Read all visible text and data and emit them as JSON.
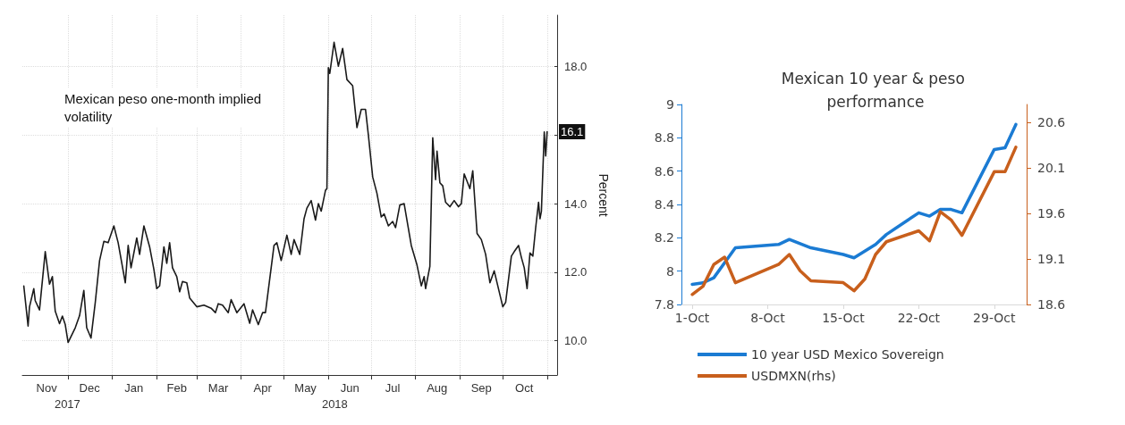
{
  "chart_data": [
    {
      "type": "line",
      "title": "Mexican peso one-month implied volatility",
      "ylabel": "Percent",
      "x": [
        "2017-10-31",
        "2017-11-03",
        "2017-11-04",
        "2017-11-07",
        "2017-11-08",
        "2017-11-11",
        "2017-11-15",
        "2017-11-18",
        "2017-11-20",
        "2017-11-22",
        "2017-11-25",
        "2017-11-27",
        "2017-11-29",
        "2017-12-01",
        "2017-12-06",
        "2017-12-09",
        "2017-12-12",
        "2017-12-14",
        "2017-12-17",
        "2017-12-20",
        "2017-12-23",
        "2017-12-26",
        "2017-12-29",
        "2018-01-02",
        "2018-01-05",
        "2018-01-10",
        "2018-01-12",
        "2018-01-14",
        "2018-01-18",
        "2018-01-20",
        "2018-01-23",
        "2018-01-27",
        "2018-01-30",
        "2018-02-01",
        "2018-02-03",
        "2018-02-06",
        "2018-02-08",
        "2018-02-10",
        "2018-02-12",
        "2018-02-15",
        "2018-02-17",
        "2018-02-19",
        "2018-02-22",
        "2018-02-24",
        "2018-03-01",
        "2018-03-06",
        "2018-03-11",
        "2018-03-14",
        "2018-03-16",
        "2018-03-19",
        "2018-03-23",
        "2018-03-25",
        "2018-03-29",
        "2018-04-03",
        "2018-04-07",
        "2018-04-09",
        "2018-04-13",
        "2018-04-16",
        "2018-04-18",
        "2018-04-24",
        "2018-04-26",
        "2018-04-29",
        "2018-05-03",
        "2018-05-06",
        "2018-05-08",
        "2018-05-12",
        "2018-05-15",
        "2018-05-17",
        "2018-05-20",
        "2018-05-23",
        "2018-05-25",
        "2018-05-27",
        "2018-05-30",
        "2018-05-31",
        "2018-06-01",
        "2018-06-02",
        "2018-06-05",
        "2018-06-08",
        "2018-06-11",
        "2018-06-14",
        "2018-06-18",
        "2018-06-21",
        "2018-06-24",
        "2018-06-27",
        "2018-06-29",
        "2018-07-02",
        "2018-07-05",
        "2018-07-08",
        "2018-07-10",
        "2018-07-13",
        "2018-07-16",
        "2018-07-18",
        "2018-07-21",
        "2018-07-24",
        "2018-07-29",
        "2018-08-02",
        "2018-08-05",
        "2018-08-07",
        "2018-08-08",
        "2018-08-11",
        "2018-08-13",
        "2018-08-15",
        "2018-08-16",
        "2018-08-18",
        "2018-08-20",
        "2018-08-22",
        "2018-08-25",
        "2018-08-28",
        "2018-08-31",
        "2018-09-02",
        "2018-09-04",
        "2018-09-08",
        "2018-09-10",
        "2018-09-13",
        "2018-09-16",
        "2018-09-19",
        "2018-09-22",
        "2018-09-25",
        "2018-10-01",
        "2018-10-03",
        "2018-10-07",
        "2018-10-09",
        "2018-10-12",
        "2018-10-14",
        "2018-10-16",
        "2018-10-18",
        "2018-10-20",
        "2018-10-22",
        "2018-10-24",
        "2018-10-26",
        "2018-10-27",
        "2018-10-28",
        "2018-10-30",
        "2018-10-31",
        "2018-11-01"
      ],
      "series": [
        {
          "color": "#1a1a1a",
          "values": [
            11.6,
            10.43,
            10.99,
            11.52,
            11.17,
            10.9,
            12.6,
            11.65,
            11.87,
            10.86,
            10.5,
            10.72,
            10.47,
            9.95,
            10.38,
            10.73,
            11.47,
            10.38,
            10.08,
            11.12,
            12.34,
            12.9,
            12.86,
            13.35,
            12.86,
            11.69,
            12.78,
            12.13,
            13.0,
            12.52,
            13.35,
            12.74,
            12.08,
            11.52,
            11.6,
            12.74,
            12.26,
            12.86,
            12.13,
            11.87,
            11.43,
            11.73,
            11.69,
            11.25,
            10.99,
            11.04,
            10.95,
            10.82,
            11.08,
            11.04,
            10.82,
            11.2,
            10.82,
            11.08,
            10.51,
            10.9,
            10.47,
            10.82,
            10.82,
            12.78,
            12.86,
            12.34,
            13.08,
            12.52,
            12.95,
            12.52,
            13.56,
            13.87,
            14.09,
            13.52,
            14.0,
            13.78,
            14.39,
            14.44,
            17.97,
            17.8,
            18.71,
            18.01,
            18.53,
            17.62,
            17.44,
            16.22,
            16.75,
            16.75,
            16.0,
            14.78,
            14.3,
            13.61,
            13.7,
            13.35,
            13.48,
            13.3,
            13.96,
            14.0,
            12.78,
            12.21,
            11.6,
            11.87,
            11.52,
            12.17,
            15.92,
            14.7,
            15.53,
            14.61,
            14.52,
            14.04,
            13.91,
            14.09,
            13.91,
            14.0,
            14.87,
            14.44,
            14.96,
            13.13,
            12.95,
            12.52,
            11.69,
            12.04,
            10.99,
            11.12,
            12.47,
            12.6,
            12.78,
            12.43,
            12.13,
            11.52,
            12.56,
            12.47,
            13.3,
            14.04,
            13.56,
            13.78,
            16.09,
            15.39,
            16.1
          ]
        }
      ],
      "xlim": [
        "2017-10-30",
        "2018-11-08"
      ],
      "xticks": [
        {
          "value": "2017-11-16",
          "label": "Nov"
        },
        {
          "value": "2017-12-01",
          "label": null
        },
        {
          "value": "2017-12-16",
          "label": "Dec"
        },
        {
          "value": "2018-01-01",
          "label": null
        },
        {
          "value": "2018-01-16",
          "label": "Jan"
        },
        {
          "value": "2018-02-01",
          "label": null
        },
        {
          "value": "2018-02-15",
          "label": "Feb"
        },
        {
          "value": "2018-03-01",
          "label": null
        },
        {
          "value": "2018-03-16",
          "label": "Mar"
        },
        {
          "value": "2018-04-01",
          "label": null
        },
        {
          "value": "2018-04-16",
          "label": "Apr"
        },
        {
          "value": "2018-05-01",
          "label": null
        },
        {
          "value": "2018-05-16",
          "label": "May"
        },
        {
          "value": "2018-06-01",
          "label": null
        },
        {
          "value": "2018-06-16",
          "label": "Jun"
        },
        {
          "value": "2018-07-01",
          "label": null
        },
        {
          "value": "2018-07-16",
          "label": "Jul"
        },
        {
          "value": "2018-08-01",
          "label": null
        },
        {
          "value": "2018-08-16",
          "label": "Aug"
        },
        {
          "value": "2018-09-01",
          "label": null
        },
        {
          "value": "2018-09-16",
          "label": "Sep"
        },
        {
          "value": "2018-10-01",
          "label": null
        },
        {
          "value": "2018-10-16",
          "label": "Oct"
        },
        {
          "value": "2018-11-01",
          "label": null
        }
      ],
      "ylim": [
        9,
        19.5
      ],
      "yticks": [
        {
          "value": 10,
          "label": "10.0"
        },
        {
          "value": 12,
          "label": "12.0"
        },
        {
          "value": 14,
          "label": "14.0"
        },
        {
          "value": 16,
          "label": null
        },
        {
          "value": 18,
          "label": "18.0"
        }
      ],
      "annotations": [
        {
          "text": "16.1",
          "x": "2018-11-01",
          "y": 16.1
        },
        "2017",
        "2018"
      ],
      "grid": true,
      "legend": false,
      "marker": "none",
      "line_style": "solid"
    },
    {
      "type": "line",
      "title": "Mexican 10 year & peso performance",
      "series": [
        {
          "name": "10 year USD Mexico Sovereign",
          "color": "#1b7bd3",
          "x": [
            "--10-01",
            "--10-02",
            "--10-03",
            "--10-05",
            "--10-09",
            "--10-10",
            "--10-12",
            "--10-15",
            "--10-16",
            "--10-18",
            "--10-19",
            "--10-22",
            "--10-23",
            "--10-24",
            "--10-25",
            "--10-26",
            "--10-29",
            "--10-30",
            "--10-31"
          ],
          "values": [
            7.92,
            7.93,
            7.96,
            8.14,
            8.16,
            8.19,
            8.14,
            8.1,
            8.08,
            8.16,
            8.22,
            8.35,
            8.33,
            8.37,
            8.37,
            8.35,
            8.73,
            8.74,
            8.88
          ]
        },
        {
          "name": "USDMXN(rhs)",
          "color": "#c85f1c",
          "axis": "y2",
          "x": [
            "--10-01",
            "--10-02",
            "--10-03",
            "--10-04",
            "--10-05",
            "--10-09",
            "--10-10",
            "--10-11",
            "--10-12",
            "--10-15",
            "--10-16",
            "--10-17",
            "--10-18",
            "--10-19",
            "--10-22",
            "--10-23",
            "--10-24",
            "--10-25",
            "--10-26",
            "--10-29",
            "--10-30",
            "--10-31"
          ],
          "values": [
            18.71,
            18.8,
            19.04,
            19.12,
            18.84,
            19.04,
            19.15,
            18.97,
            18.86,
            18.84,
            18.75,
            18.88,
            19.15,
            19.29,
            19.41,
            19.3,
            19.62,
            19.53,
            19.36,
            20.06,
            20.06,
            20.33
          ]
        }
      ],
      "xlim": [
        "--09-30",
        "--11-01"
      ],
      "xticks": [
        {
          "value": "--10-01",
          "label": "1-Oct"
        },
        {
          "value": "--10-08",
          "label": "8-Oct"
        },
        {
          "value": "--10-15",
          "label": "15-Oct"
        },
        {
          "value": "--10-22",
          "label": "22-Oct"
        },
        {
          "value": "--10-29",
          "label": "29-Oct"
        }
      ],
      "ylim": [
        7.8,
        9
      ],
      "yticks": [
        7.8,
        8,
        8.2,
        8.4,
        8.6,
        8.8,
        9
      ],
      "y2lim": [
        18.6,
        20.8
      ],
      "y2ticks": [
        18.6,
        19.1,
        19.6,
        20.1,
        20.6
      ],
      "grid": false,
      "legend": "bottom",
      "marker": "none",
      "line_style": "solid"
    }
  ]
}
